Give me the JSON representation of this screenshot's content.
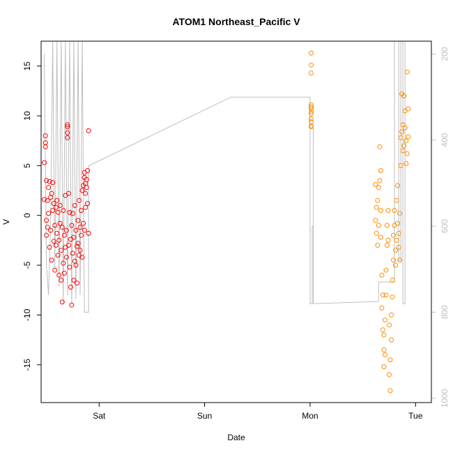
{
  "chart_data": {
    "type": "scatter",
    "title": "ATOM1 Northeast_Pacific V",
    "xlabel": "Date",
    "ylabel": "V",
    "x_ticks": [
      {
        "label": "Sat",
        "value": 1.0
      },
      {
        "label": "Sun",
        "value": 2.0
      },
      {
        "label": "Mon",
        "value": 3.0
      },
      {
        "label": "Tue",
        "value": 4.0
      }
    ],
    "y_ticks": [
      -15,
      -10,
      -5,
      0,
      5,
      10,
      15
    ],
    "y2_ticks": [
      200,
      400,
      600,
      800,
      1000
    ],
    "xlim": [
      0.45,
      4.15
    ],
    "ylim": [
      -18.8,
      17.5
    ],
    "y2lim": [
      1010,
      170
    ],
    "grid": false,
    "colors": {
      "series_red": "#ff0000",
      "series_orange": "#ff8c00",
      "line_gray": "#bebebe",
      "axis": "#000000",
      "y2_axis": "#bebebe"
    },
    "series": [
      {
        "color": "red",
        "points": [
          [
            0.48,
            1.6
          ],
          [
            0.48,
            5.3
          ],
          [
            0.49,
            8.0
          ],
          [
            0.49,
            7.3
          ],
          [
            0.49,
            6.9
          ],
          [
            0.5,
            -2.0
          ],
          [
            0.5,
            -0.5
          ],
          [
            0.5,
            3.5
          ],
          [
            0.51,
            1.5
          ],
          [
            0.51,
            -1.2
          ],
          [
            0.52,
            2.8
          ],
          [
            0.52,
            0.2
          ],
          [
            0.53,
            3.4
          ],
          [
            0.53,
            -3.2
          ],
          [
            0.54,
            1.8
          ],
          [
            0.54,
            -1.5
          ],
          [
            0.55,
            2.2
          ],
          [
            0.55,
            -4.5
          ],
          [
            0.56,
            3.3
          ],
          [
            0.56,
            0.5
          ],
          [
            0.57,
            -2.6
          ],
          [
            0.57,
            1.2
          ],
          [
            0.58,
            -5.5
          ],
          [
            0.58,
            -1.0
          ],
          [
            0.59,
            0.8
          ],
          [
            0.59,
            -3.0
          ],
          [
            0.6,
            1.5
          ],
          [
            0.6,
            -1.8
          ],
          [
            0.61,
            -4.0
          ],
          [
            0.61,
            0.3
          ],
          [
            0.62,
            -6.0
          ],
          [
            0.62,
            -2.5
          ],
          [
            0.63,
            1.0
          ],
          [
            0.63,
            -0.8
          ],
          [
            0.64,
            -6.5
          ],
          [
            0.64,
            -3.5
          ],
          [
            0.65,
            -8.7
          ],
          [
            0.65,
            -1.2
          ],
          [
            0.66,
            0.5
          ],
          [
            0.66,
            -4.8
          ],
          [
            0.67,
            -2.0
          ],
          [
            0.67,
            -5.8
          ],
          [
            0.68,
            -3.2
          ],
          [
            0.68,
            2.0
          ],
          [
            0.69,
            -1.5
          ],
          [
            0.69,
            -4.2
          ],
          [
            0.7,
            8.9
          ],
          [
            0.7,
            8.3
          ],
          [
            0.7,
            7.8
          ],
          [
            0.7,
            9.1
          ],
          [
            0.71,
            2.2
          ],
          [
            0.71,
            -3.0
          ],
          [
            0.72,
            0.3
          ],
          [
            0.72,
            -5.2
          ],
          [
            0.73,
            -2.4
          ],
          [
            0.73,
            -7.2
          ],
          [
            0.74,
            -9.0
          ],
          [
            0.74,
            -1.0
          ],
          [
            0.75,
            0.2
          ],
          [
            0.75,
            -3.8
          ],
          [
            0.76,
            -6.5
          ],
          [
            0.76,
            -2.2
          ],
          [
            0.77,
            -4.6
          ],
          [
            0.77,
            1.0
          ],
          [
            0.78,
            -1.5
          ],
          [
            0.78,
            -5.0
          ],
          [
            0.79,
            -3.1
          ],
          [
            0.79,
            -6.8
          ],
          [
            0.8,
            -0.5
          ],
          [
            0.8,
            -2.8
          ],
          [
            0.81,
            -4.0
          ],
          [
            0.81,
            1.5
          ],
          [
            0.82,
            -1.2
          ],
          [
            0.82,
            -3.5
          ],
          [
            0.83,
            0.5
          ],
          [
            0.83,
            -2.0
          ],
          [
            0.84,
            -4.2
          ],
          [
            0.84,
            2.5
          ],
          [
            0.85,
            3.0
          ],
          [
            0.85,
            -0.8
          ],
          [
            0.86,
            3.8
          ],
          [
            0.86,
            4.3
          ],
          [
            0.86,
            -1.5
          ],
          [
            0.87,
            2.2
          ],
          [
            0.87,
            3.2
          ],
          [
            0.87,
            0.8
          ],
          [
            0.88,
            3.6
          ],
          [
            0.88,
            2.8
          ],
          [
            0.89,
            4.5
          ],
          [
            0.89,
            1.2
          ],
          [
            0.9,
            8.5
          ],
          [
            0.9,
            -1.8
          ]
        ]
      },
      {
        "color": "orange",
        "points": [
          [
            3.01,
            16.3
          ],
          [
            3.01,
            15.1
          ],
          [
            3.01,
            14.3
          ],
          [
            3.01,
            11.1
          ],
          [
            3.01,
            10.9
          ],
          [
            3.01,
            10.7
          ],
          [
            3.01,
            10.4
          ],
          [
            3.01,
            10.2
          ],
          [
            3.01,
            9.7
          ],
          [
            3.01,
            9.4
          ],
          [
            3.01,
            9.0
          ],
          [
            3.01,
            8.9
          ],
          [
            3.62,
            3.1
          ],
          [
            3.62,
            -0.5
          ],
          [
            3.63,
            -1.8
          ],
          [
            3.63,
            0.8
          ],
          [
            3.64,
            -3.0
          ],
          [
            3.64,
            1.5
          ],
          [
            3.65,
            -1.0
          ],
          [
            3.65,
            2.8
          ],
          [
            3.66,
            6.9
          ],
          [
            3.66,
            3.5
          ],
          [
            3.67,
            4.5
          ],
          [
            3.67,
            0.5
          ],
          [
            3.67,
            -2.2
          ],
          [
            3.68,
            -6.0
          ],
          [
            3.68,
            -9.3
          ],
          [
            3.69,
            -8.0
          ],
          [
            3.69,
            -11.5
          ],
          [
            3.7,
            -13.5
          ],
          [
            3.7,
            -15.2
          ],
          [
            3.7,
            -12.0
          ],
          [
            3.71,
            -14.0
          ],
          [
            3.71,
            -10.5
          ],
          [
            3.72,
            -8.0
          ],
          [
            3.72,
            -5.5
          ],
          [
            3.73,
            -3.0
          ],
          [
            3.73,
            -1.0
          ],
          [
            3.74,
            0.5
          ],
          [
            3.74,
            -2.5
          ],
          [
            3.75,
            -11.0
          ],
          [
            3.75,
            -16.0
          ],
          [
            3.76,
            -17.6
          ],
          [
            3.76,
            -14.5
          ],
          [
            3.77,
            -12.5
          ],
          [
            3.77,
            -10.0
          ],
          [
            3.78,
            -8.2
          ],
          [
            3.78,
            -6.5
          ],
          [
            3.79,
            -4.5
          ],
          [
            3.79,
            -2.0
          ],
          [
            3.8,
            -1.0
          ],
          [
            3.8,
            0.5
          ],
          [
            3.81,
            -3.5
          ],
          [
            3.81,
            -5.0
          ],
          [
            3.82,
            -2.5
          ],
          [
            3.82,
            1.5
          ],
          [
            3.83,
            3.0
          ],
          [
            3.83,
            -0.8
          ],
          [
            3.84,
            -3.2
          ],
          [
            3.84,
            -1.8
          ],
          [
            3.85,
            0.2
          ],
          [
            3.85,
            -4.5
          ],
          [
            3.86,
            5.0
          ],
          [
            3.86,
            7.8
          ],
          [
            3.87,
            8.4
          ],
          [
            3.87,
            12.2
          ],
          [
            3.88,
            9.1
          ],
          [
            3.88,
            6.5
          ],
          [
            3.89,
            12.0
          ],
          [
            3.89,
            7.0
          ],
          [
            3.9,
            10.5
          ],
          [
            3.9,
            8.8
          ],
          [
            3.91,
            5.2
          ],
          [
            3.91,
            7.5
          ],
          [
            3.92,
            14.4
          ],
          [
            3.92,
            6.2
          ],
          [
            3.93,
            7.9
          ],
          [
            3.93,
            10.7
          ]
        ]
      }
    ],
    "line_series": {
      "color": "gray",
      "axis": "right",
      "points": [
        [
          0.48,
          200
        ],
        [
          0.5,
          690
        ],
        [
          0.52,
          760
        ],
        [
          0.54,
          600
        ],
        [
          0.56,
          170
        ],
        [
          0.58,
          700
        ],
        [
          0.6,
          170
        ],
        [
          0.62,
          740
        ],
        [
          0.64,
          170
        ],
        [
          0.66,
          780
        ],
        [
          0.68,
          170
        ],
        [
          0.7,
          760
        ],
        [
          0.72,
          170
        ],
        [
          0.74,
          780
        ],
        [
          0.76,
          170
        ],
        [
          0.78,
          770
        ],
        [
          0.8,
          170
        ],
        [
          0.82,
          760
        ],
        [
          0.84,
          170
        ],
        [
          0.86,
          800
        ],
        [
          0.88,
          800
        ],
        [
          0.9,
          800
        ],
        [
          0.9,
          460
        ],
        [
          2.25,
          300
        ],
        [
          3.0,
          300
        ],
        [
          3.0,
          780
        ],
        [
          3.02,
          780
        ],
        [
          3.02,
          600
        ],
        [
          3.03,
          600
        ],
        [
          3.03,
          370
        ],
        [
          3.03,
          780
        ],
        [
          3.65,
          775
        ],
        [
          3.65,
          730
        ],
        [
          3.8,
          730
        ],
        [
          3.8,
          170
        ],
        [
          3.84,
          170
        ],
        [
          3.84,
          680
        ],
        [
          3.86,
          680
        ],
        [
          3.86,
          170
        ],
        [
          3.88,
          170
        ],
        [
          3.88,
          780
        ],
        [
          3.9,
          780
        ],
        [
          3.9,
          170
        ]
      ]
    }
  }
}
